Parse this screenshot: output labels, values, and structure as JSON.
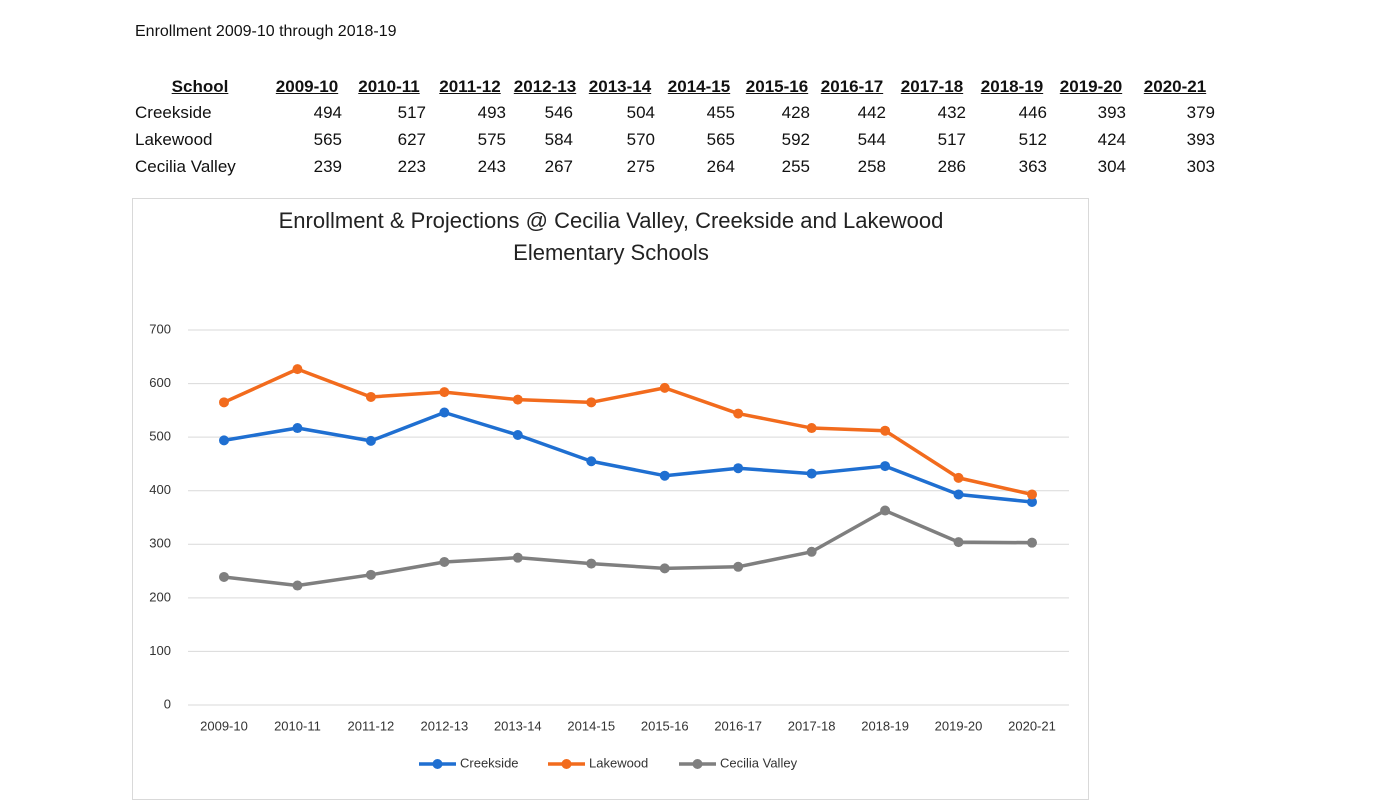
{
  "heading": "Enrollment 2009-10 through 2018-19",
  "table": {
    "header": [
      "School",
      "2009-10",
      "2010-11",
      "2011-12",
      "2012-13",
      "2013-14",
      "2014-15",
      "2015-16",
      "2016-17",
      "2017-18",
      "2018-19",
      "2019-20",
      "2020-21"
    ],
    "rows": [
      [
        "Creekside",
        494,
        517,
        493,
        546,
        504,
        455,
        428,
        442,
        432,
        446,
        393,
        379
      ],
      [
        "Lakewood",
        565,
        627,
        575,
        584,
        570,
        565,
        592,
        544,
        517,
        512,
        424,
        393
      ],
      [
        "Cecilia Valley",
        239,
        223,
        243,
        267,
        275,
        264,
        255,
        258,
        286,
        363,
        304,
        303
      ]
    ]
  },
  "chart_data": {
    "type": "line",
    "title": "Enrollment & Projections @ Cecilia Valley, Creekside and Lakewood Elementary Schools",
    "categories": [
      "2009-10",
      "2010-11",
      "2011-12",
      "2012-13",
      "2013-14",
      "2014-15",
      "2015-16",
      "2016-17",
      "2017-18",
      "2018-19",
      "2019-20",
      "2020-21"
    ],
    "series": [
      {
        "name": "Creekside",
        "color": "#1f6fd1",
        "values": [
          494,
          517,
          493,
          546,
          504,
          455,
          428,
          442,
          432,
          446,
          393,
          379
        ]
      },
      {
        "name": "Lakewood",
        "color": "#f26b1d",
        "values": [
          565,
          627,
          575,
          584,
          570,
          565,
          592,
          544,
          517,
          512,
          424,
          393
        ]
      },
      {
        "name": "Cecilia Valley",
        "color": "#7f7f7f",
        "values": [
          239,
          223,
          243,
          267,
          275,
          264,
          255,
          258,
          286,
          363,
          304,
          303
        ]
      }
    ],
    "ylim": [
      0,
      700
    ],
    "yticks": [
      0,
      100,
      200,
      300,
      400,
      500,
      600,
      700
    ],
    "grid": true,
    "legend": "bottom"
  }
}
